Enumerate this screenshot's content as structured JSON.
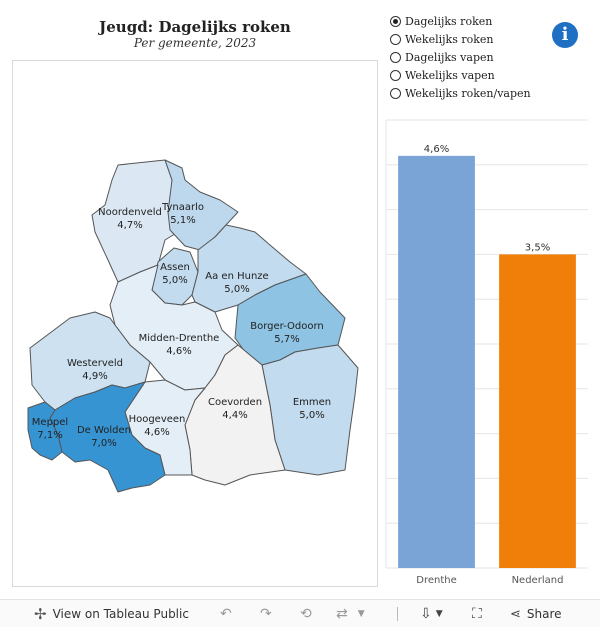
{
  "title": "Jeugd:  Dagelijks  roken",
  "subtitle": "Per  gemeente,  2023",
  "metric_options": [
    {
      "label": "Dagelijks  roken",
      "selected": true
    },
    {
      "label": "Wekelijks  roken",
      "selected": false
    },
    {
      "label": "Dagelijks  vapen",
      "selected": false
    },
    {
      "label": "Wekelijks  vapen",
      "selected": false
    },
    {
      "label": "Wekelijks roken/vapen",
      "selected": false
    }
  ],
  "info_icon": "info-icon",
  "municipalities": [
    {
      "name": "Noordenveld",
      "value": "4,7%",
      "color": "#dbe8f3"
    },
    {
      "name": "Tynaarlo",
      "value": "5,1%",
      "color": "#bdd7ec"
    },
    {
      "name": "Assen",
      "value": "5,0%",
      "color": "#c2dbee"
    },
    {
      "name": "Aa en Hunze",
      "value": "5,0%",
      "color": "#c2dbee"
    },
    {
      "name": "Borger-Odoorn",
      "value": "5,7%",
      "color": "#8fc3e4"
    },
    {
      "name": "Midden-Drenthe",
      "value": "4,6%",
      "color": "#e4eef6"
    },
    {
      "name": "Westerveld",
      "value": "4,9%",
      "color": "#cde1f0"
    },
    {
      "name": "Emmen",
      "value": "5,0%",
      "color": "#c2dbee"
    },
    {
      "name": "Coevorden",
      "value": "4,4%",
      "color": "#f2f2f2"
    },
    {
      "name": "Hoogeveen",
      "value": "4,6%",
      "color": "#e4eef6"
    },
    {
      "name": "De Wolden",
      "value": "7,0%",
      "color": "#3794d3"
    },
    {
      "name": "Meppel",
      "value": "7,1%",
      "color": "#3794d3"
    }
  ],
  "chart_data": {
    "type": "bar",
    "categories": [
      "Drenthe",
      "Nederland"
    ],
    "values": [
      4.6,
      3.5
    ],
    "value_labels": [
      "4,6%",
      "3,5%"
    ],
    "colors": [
      "#7aa3d6",
      "#f07f09"
    ],
    "ylim": [
      0,
      5
    ],
    "grid": true
  },
  "toolbar": {
    "view_label": "View on Tableau Public",
    "share_label": "Share",
    "icons": [
      "tableau-icon",
      "undo-icon",
      "redo-icon",
      "revert-icon",
      "refresh-icon",
      "download-icon",
      "fullscreen-icon",
      "share-icon"
    ]
  }
}
